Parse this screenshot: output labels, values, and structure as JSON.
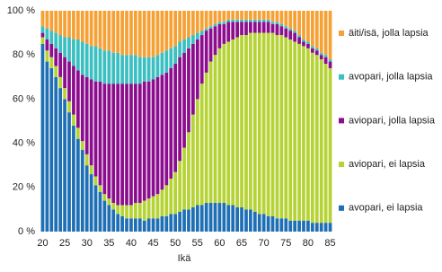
{
  "chart_data": {
    "type": "stacked_bar",
    "x_label": "Ikä",
    "categories": [
      20,
      null,
      null,
      null,
      null,
      25,
      null,
      null,
      null,
      null,
      30,
      null,
      null,
      null,
      null,
      35,
      null,
      null,
      null,
      null,
      40,
      null,
      null,
      null,
      null,
      45,
      null,
      null,
      null,
      null,
      50,
      null,
      null,
      null,
      null,
      55,
      null,
      null,
      null,
      null,
      60,
      null,
      null,
      null,
      null,
      65,
      null,
      null,
      null,
      null,
      70,
      null,
      null,
      null,
      null,
      75,
      null,
      null,
      null,
      null,
      80,
      null,
      null,
      null,
      null,
      85
    ],
    "ylim": [
      0,
      100
    ],
    "yticks": [
      {
        "value": 0,
        "label": "0 %"
      },
      {
        "value": 20,
        "label": "20 %"
      },
      {
        "value": 40,
        "label": "40 %"
      },
      {
        "value": 60,
        "label": "60 %"
      },
      {
        "value": 80,
        "label": "80 %"
      },
      {
        "value": 100,
        "label": "100 %"
      }
    ],
    "grid": false,
    "legend": "right",
    "series": [
      {
        "name": "avopari, ei lapsia",
        "color": "#1f6fb5",
        "values": [
          85,
          77,
          74,
          70,
          65,
          60,
          54,
          48,
          42,
          37,
          30,
          26,
          21,
          18,
          14,
          12,
          10,
          8,
          7,
          6,
          6,
          6,
          6,
          5,
          6,
          6,
          6,
          7,
          7,
          8,
          8,
          9,
          10,
          10,
          11,
          12,
          12,
          13,
          13,
          13,
          13,
          13,
          12,
          12,
          11,
          11,
          10,
          10,
          9,
          8,
          8,
          7,
          7,
          6,
          6,
          6,
          5,
          5,
          5,
          5,
          5,
          4,
          4,
          4,
          4,
          4
        ]
      },
      {
        "name": "aviopari, ei lapsia",
        "color": "#b6d335",
        "values": [
          3,
          5,
          5,
          5,
          5,
          5,
          5,
          5,
          5,
          4,
          5,
          4,
          4,
          3,
          3,
          3,
          3,
          4,
          5,
          6,
          6,
          7,
          7,
          9,
          9,
          10,
          11,
          12,
          14,
          16,
          19,
          23,
          28,
          35,
          42,
          48,
          55,
          59,
          64,
          67,
          70,
          72,
          74,
          75,
          77,
          78,
          79,
          80,
          81,
          82,
          82,
          83,
          83,
          83,
          83,
          82,
          82,
          81,
          80,
          79,
          78,
          77,
          76,
          74,
          72,
          70
        ]
      },
      {
        "name": "aviopari, jolla lapsia",
        "color": "#8c0d8e",
        "values": [
          2,
          5,
          6,
          8,
          11,
          14,
          18,
          22,
          26,
          30,
          35,
          39,
          43,
          47,
          50,
          52,
          54,
          55,
          55,
          55,
          55,
          54,
          54,
          54,
          53,
          53,
          53,
          52,
          51,
          50,
          49,
          47,
          43,
          38,
          32,
          27,
          22,
          19,
          15,
          13,
          11,
          9,
          9,
          8,
          7,
          6,
          6,
          5,
          5,
          5,
          5,
          5,
          4,
          5,
          4,
          4,
          4,
          4,
          3,
          2,
          2,
          2,
          2,
          2,
          3,
          3
        ]
      },
      {
        "name": "avopari, jolla lapsia",
        "color": "#3cbfc1",
        "values": [
          3,
          5,
          6,
          7,
          8,
          9,
          11,
          12,
          14,
          15,
          15,
          15,
          16,
          15,
          15,
          15,
          14,
          14,
          13,
          13,
          13,
          13,
          12,
          11,
          11,
          10,
          10,
          10,
          10,
          9,
          8,
          7,
          6,
          5,
          4,
          3,
          2,
          1,
          1,
          1,
          1,
          1,
          1,
          1,
          1,
          1,
          1,
          1,
          1,
          1,
          1,
          1,
          1,
          1,
          1,
          1,
          1,
          1,
          1,
          1,
          1,
          1,
          1,
          1,
          1,
          1
        ]
      },
      {
        "name": "äiti/isä, jolla lapsia",
        "color": "#f6a135",
        "values": [
          7,
          8,
          9,
          10,
          11,
          12,
          12,
          13,
          13,
          14,
          15,
          16,
          16,
          17,
          18,
          18,
          19,
          19,
          20,
          20,
          20,
          20,
          21,
          21,
          21,
          21,
          20,
          19,
          18,
          17,
          16,
          14,
          13,
          12,
          11,
          10,
          9,
          8,
          7,
          6,
          5,
          5,
          4,
          4,
          4,
          4,
          4,
          4,
          4,
          4,
          4,
          4,
          5,
          5,
          6,
          7,
          8,
          9,
          11,
          13,
          14,
          16,
          17,
          19,
          20,
          22
        ]
      }
    ]
  }
}
